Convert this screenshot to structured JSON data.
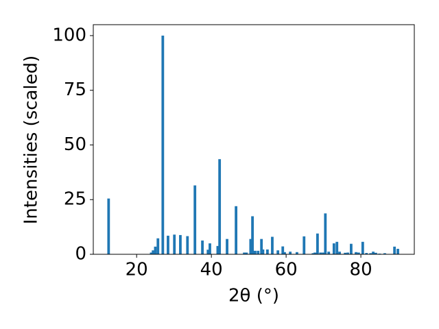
{
  "chart_data": {
    "type": "bar",
    "x_label": "2θ (°)",
    "y_label": "Intensities (scaled)",
    "color": "#1f77b4",
    "x": [
      12.5,
      23.9,
      24.4,
      25.0,
      25.7,
      27.0,
      28.4,
      30.1,
      31.7,
      33.6,
      35.6,
      37.6,
      39.1,
      39.6,
      41.7,
      42.2,
      44.2,
      46.6,
      48.8,
      49.4,
      50.5,
      51.0,
      51.7,
      52.5,
      53.4,
      53.8,
      55.0,
      56.3,
      57.8,
      59.1,
      59.6,
      61.1,
      62.9,
      64.8,
      67.2,
      67.7,
      68.4,
      69.2,
      69.9,
      70.5,
      71.4,
      72.8,
      73.6,
      74.3,
      75.8,
      76.5,
      77.4,
      78.7,
      79.4,
      80.5,
      81.5,
      82.6,
      83.3,
      84.0,
      85.0,
      86.4,
      89.0,
      89.9
    ],
    "values": [
      25.5,
      0.8,
      1.8,
      3.5,
      7.3,
      100,
      8.5,
      9.0,
      8.8,
      8.3,
      31.5,
      6.3,
      2.1,
      5.0,
      3.8,
      43.5,
      7.0,
      22.0,
      0.8,
      0.8,
      7.0,
      17.4,
      1.6,
      1.6,
      7.0,
      2.2,
      2.2,
      8.0,
      1.8,
      3.6,
      1.0,
      1.2,
      1.0,
      8.2,
      0.5,
      0.8,
      9.5,
      0.8,
      0.8,
      18.7,
      1.2,
      5.0,
      5.7,
      1.2,
      0.7,
      0.8,
      4.8,
      1.0,
      0.8,
      5.7,
      0.6,
      0.5,
      1.2,
      0.7,
      0.3,
      0.5,
      3.5,
      2.5
    ],
    "xlim": [
      8.4,
      94.3
    ],
    "ylim": [
      0,
      105
    ],
    "xticks": [
      20,
      40,
      60,
      80
    ],
    "yticks": [
      0,
      25,
      50,
      75,
      100
    ]
  }
}
